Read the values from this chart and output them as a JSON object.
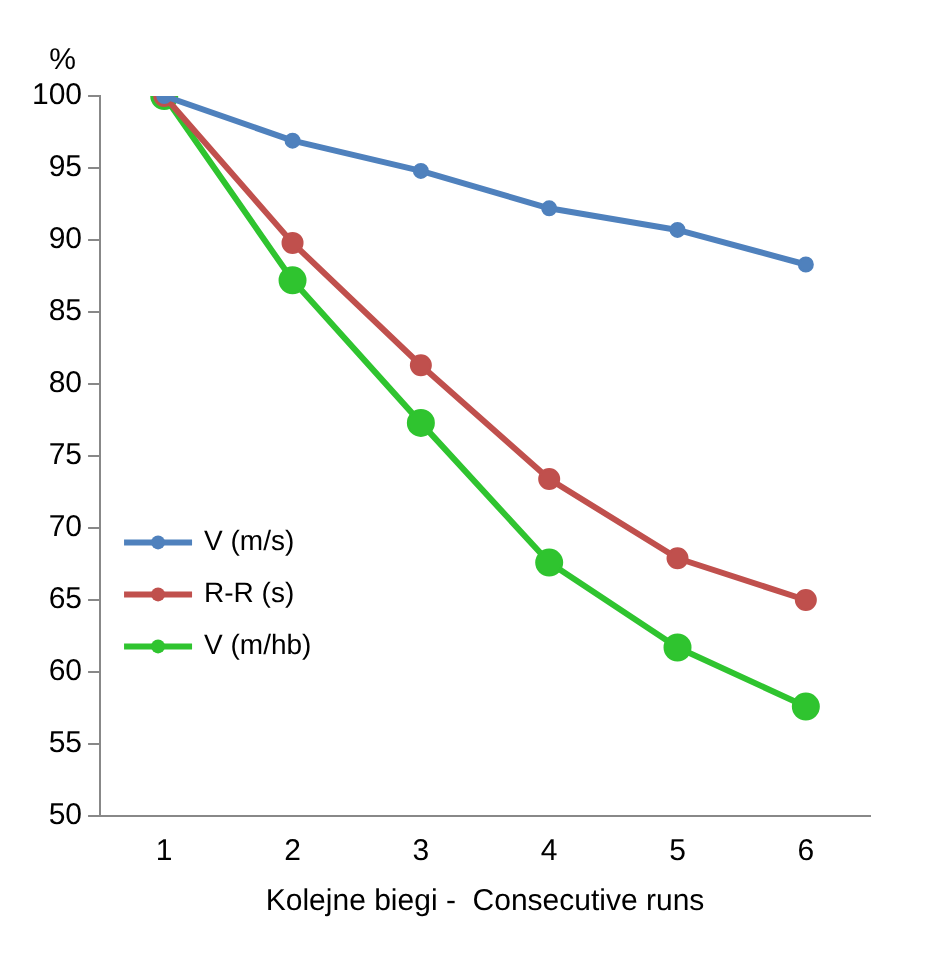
{
  "chart_data": {
    "type": "line",
    "ylabel": "%",
    "xlabel": "Kolejne biegi -  Consecutive runs",
    "categories": [
      "1",
      "2",
      "3",
      "4",
      "5",
      "6"
    ],
    "series": [
      {
        "name": "V (m/s)",
        "color": "#4f81bd",
        "values": [
          100,
          96.9,
          94.8,
          92.2,
          90.7,
          88.3
        ]
      },
      {
        "name": "R-R (s)",
        "color": "#c0504d",
        "values": [
          100,
          89.8,
          81.3,
          73.4,
          67.9,
          65.0
        ]
      },
      {
        "name": "V (m/hb)",
        "color": "#2fc42f",
        "values": [
          100,
          87.2,
          77.3,
          67.6,
          61.7,
          57.6
        ]
      }
    ],
    "ylim": [
      50,
      100
    ],
    "yticks": [
      50,
      55,
      60,
      65,
      70,
      75,
      80,
      85,
      90,
      95,
      100
    ],
    "grid": false,
    "legend": "left",
    "marker": "circle",
    "line_style": "solid"
  }
}
